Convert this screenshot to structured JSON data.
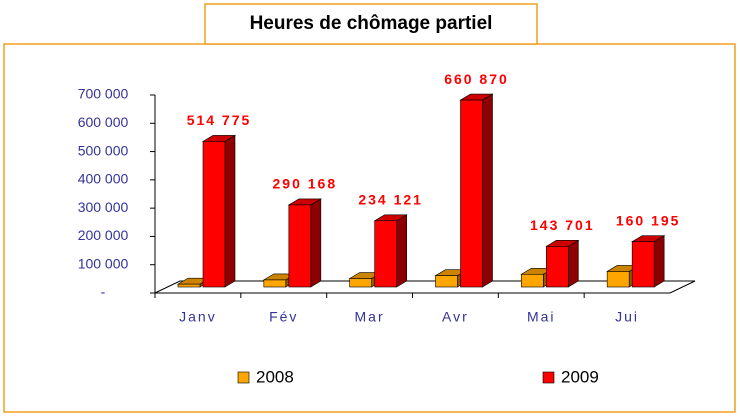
{
  "chart_data": {
    "type": "bar3d",
    "title": "Heures de chômage partiel",
    "categories": [
      "Janv",
      "Fév",
      "Mar",
      "Avr",
      "Mai",
      "Jui"
    ],
    "series": [
      {
        "name": "2008",
        "color": "#ffa500",
        "values": [
          10000,
          25000,
          30000,
          40000,
          45000,
          55000
        ]
      },
      {
        "name": "2009",
        "color": "#ff0000",
        "values": [
          514775,
          290168,
          234121,
          660870,
          143701,
          160195
        ],
        "value_labels": [
          "514 775",
          "290 168",
          "234 121",
          "660 870",
          "143 701",
          "160 195"
        ]
      }
    ],
    "ylim": [
      0,
      700000
    ],
    "yticks": [
      {
        "value": 0,
        "label": "-"
      },
      {
        "value": 100000,
        "label": "100 000"
      },
      {
        "value": 200000,
        "label": "200 000"
      },
      {
        "value": 300000,
        "label": "300 000"
      },
      {
        "value": 400000,
        "label": "400 000"
      },
      {
        "value": 500000,
        "label": "500 000"
      },
      {
        "value": 600000,
        "label": "600 000"
      },
      {
        "value": 700000,
        "label": "700 000"
      }
    ],
    "legend": "bottom"
  }
}
